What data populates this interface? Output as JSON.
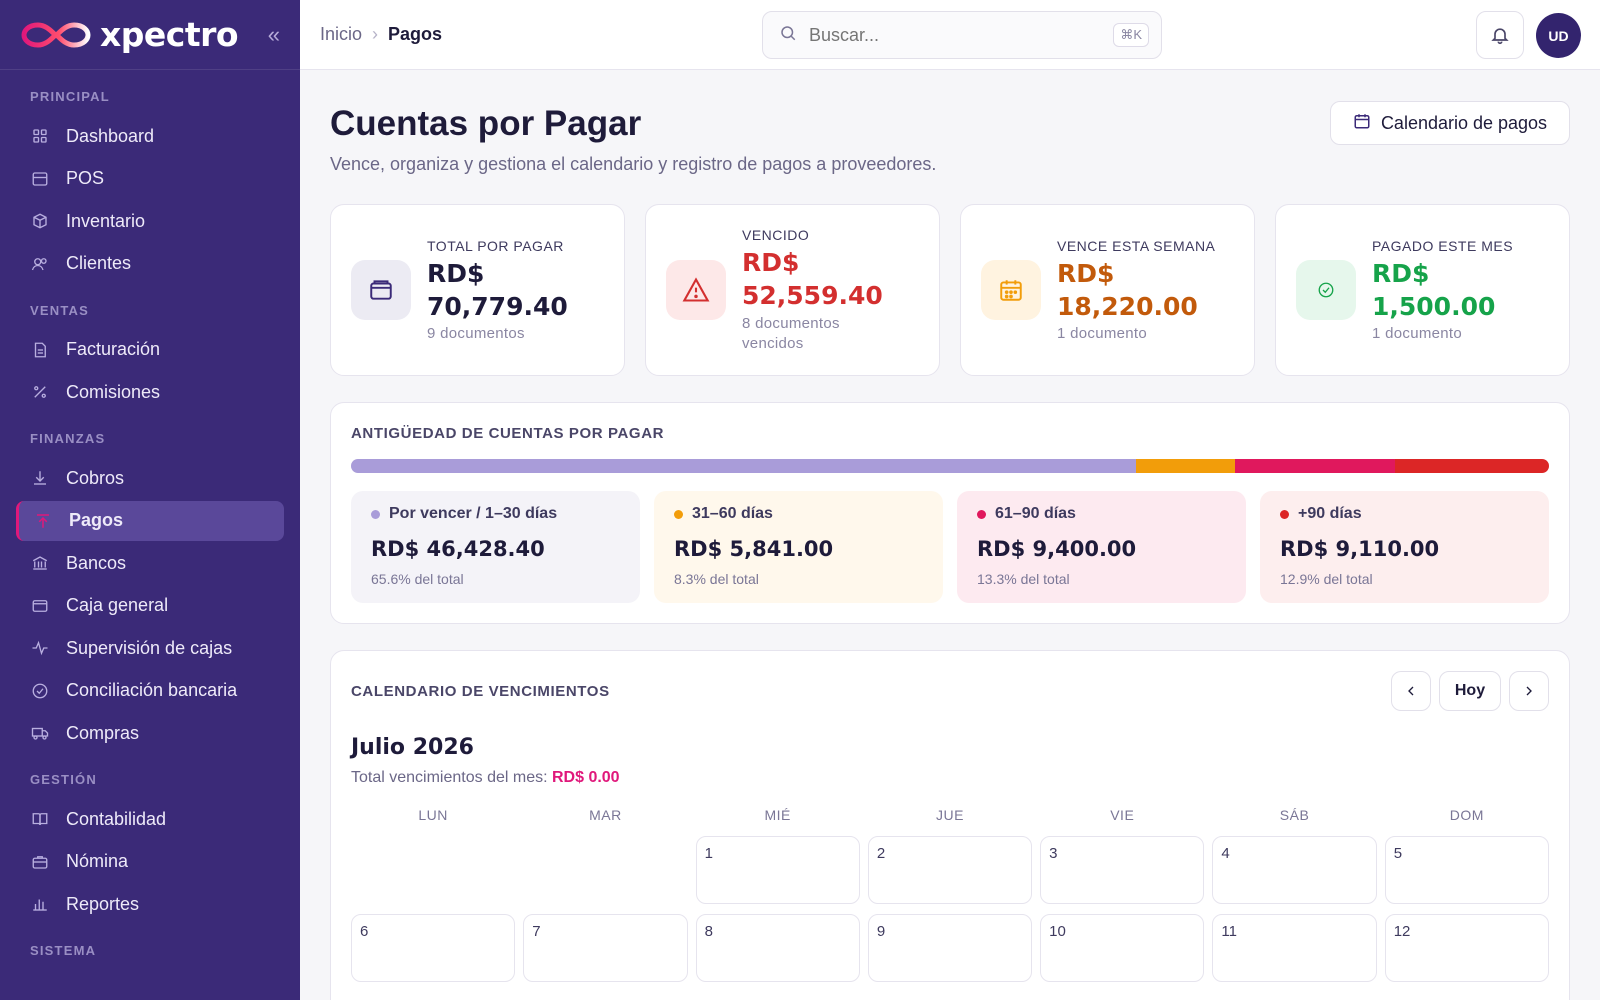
{
  "brand": {
    "name": "xpectro"
  },
  "sidebar": {
    "sections": [
      {
        "title": "PRINCIPAL",
        "items": [
          {
            "label": "Dashboard",
            "icon": "grid-icon"
          },
          {
            "label": "POS",
            "icon": "store-icon"
          },
          {
            "label": "Inventario",
            "icon": "box-icon"
          },
          {
            "label": "Clientes",
            "icon": "users-icon"
          }
        ]
      },
      {
        "title": "VENTAS",
        "items": [
          {
            "label": "Facturación",
            "icon": "invoice-icon"
          },
          {
            "label": "Comisiones",
            "icon": "percent-icon"
          }
        ]
      },
      {
        "title": "FINANZAS",
        "items": [
          {
            "label": "Cobros",
            "icon": "download-icon"
          },
          {
            "label": "Pagos",
            "icon": "upload-icon",
            "active": true
          },
          {
            "label": "Bancos",
            "icon": "bank-icon"
          },
          {
            "label": "Caja general",
            "icon": "cash-box-icon"
          },
          {
            "label": "Supervisión de cajas",
            "icon": "activity-icon"
          },
          {
            "label": "Conciliación bancaria",
            "icon": "check-circle-icon"
          },
          {
            "label": "Compras",
            "icon": "truck-icon"
          }
        ]
      },
      {
        "title": "GESTIÓN",
        "items": [
          {
            "label": "Contabilidad",
            "icon": "book-icon"
          },
          {
            "label": "Nómina",
            "icon": "briefcase-icon"
          },
          {
            "label": "Reportes",
            "icon": "bar-chart-icon"
          }
        ]
      },
      {
        "title": "SISTEMA",
        "items": []
      }
    ]
  },
  "topbar": {
    "breadcrumb": {
      "home": "Inicio",
      "current": "Pagos"
    },
    "search": {
      "placeholder": "Buscar...",
      "shortcut": "⌘K"
    },
    "avatar": "UD"
  },
  "page": {
    "title": "Cuentas por Pagar",
    "subtitle": "Vence, organiza y gestiona el calendario y registro de pagos a proveedores.",
    "calendar_button": "Calendario de pagos"
  },
  "kpis": [
    {
      "label": "TOTAL POR PAGAR",
      "value_line1": "RD$",
      "value_line2": "70,779.40",
      "note": "9 documentos",
      "color": "#1e1b3a",
      "icon_bg": "#ecebf3",
      "icon_color": "#3b2a78",
      "icon": "wallet-icon"
    },
    {
      "label": "VENCIDO",
      "value_line1": "RD$",
      "value_line2": "52,559.40",
      "note": "8 documentos vencidos",
      "color": "#d32f2f",
      "icon_bg": "#fde8e8",
      "icon_color": "#d32f2f",
      "icon": "alert-triangle-icon"
    },
    {
      "label": "VENCE ESTA SEMANA",
      "value_line1": "RD$",
      "value_line2": "18,220.00",
      "note": "1 documento",
      "color": "#c25a0b",
      "icon_bg": "#fff3e0",
      "icon_color": "#f29d0a",
      "icon": "calendar-icon"
    },
    {
      "label": "PAGADO ESTE MES",
      "value_line1": "RD$ 1,500.00",
      "value_line2": "",
      "note": "1 documento",
      "color": "#16a34a",
      "icon_bg": "#e6f7ec",
      "icon_color": "#16a34a",
      "icon": "check-circle-icon"
    }
  ],
  "aging": {
    "title": "ANTIGÜEDAD DE CUENTAS POR PAGAR",
    "buckets": [
      {
        "label": "Por vencer / 1–30 días",
        "value": "RD$ 46,428.40",
        "pct_text": "65.6% del total",
        "share": 65.6,
        "color": "#a99cd9",
        "bg": "#f4f3f8"
      },
      {
        "label": "31–60 días",
        "value": "RD$ 5,841.00",
        "pct_text": "8.3% del total",
        "share": 8.3,
        "color": "#f29d0a",
        "bg": "#fff8ec"
      },
      {
        "label": "61–90 días",
        "value": "RD$ 9,400.00",
        "pct_text": "13.3% del total",
        "share": 13.3,
        "color": "#e0185d",
        "bg": "#fdeaf0"
      },
      {
        "label": "+90 días",
        "value": "RD$ 9,110.00",
        "pct_text": "12.9% del total",
        "share": 12.9,
        "color": "#dc2626",
        "bg": "#fdeeee"
      }
    ]
  },
  "calendar": {
    "title": "CALENDARIO DE VENCIMIENTOS",
    "today_label": "Hoy",
    "month": "Julio 2026",
    "total_label": "Total vencimientos del mes:",
    "total_value": "RD$ 0.00",
    "weekdays": [
      "LUN",
      "MAR",
      "MIÉ",
      "JUE",
      "VIE",
      "SÁB",
      "DOM"
    ],
    "leading_blanks": 2,
    "days": [
      "1",
      "2",
      "3",
      "4",
      "5",
      "6",
      "7",
      "8",
      "9",
      "10",
      "11",
      "12"
    ]
  }
}
